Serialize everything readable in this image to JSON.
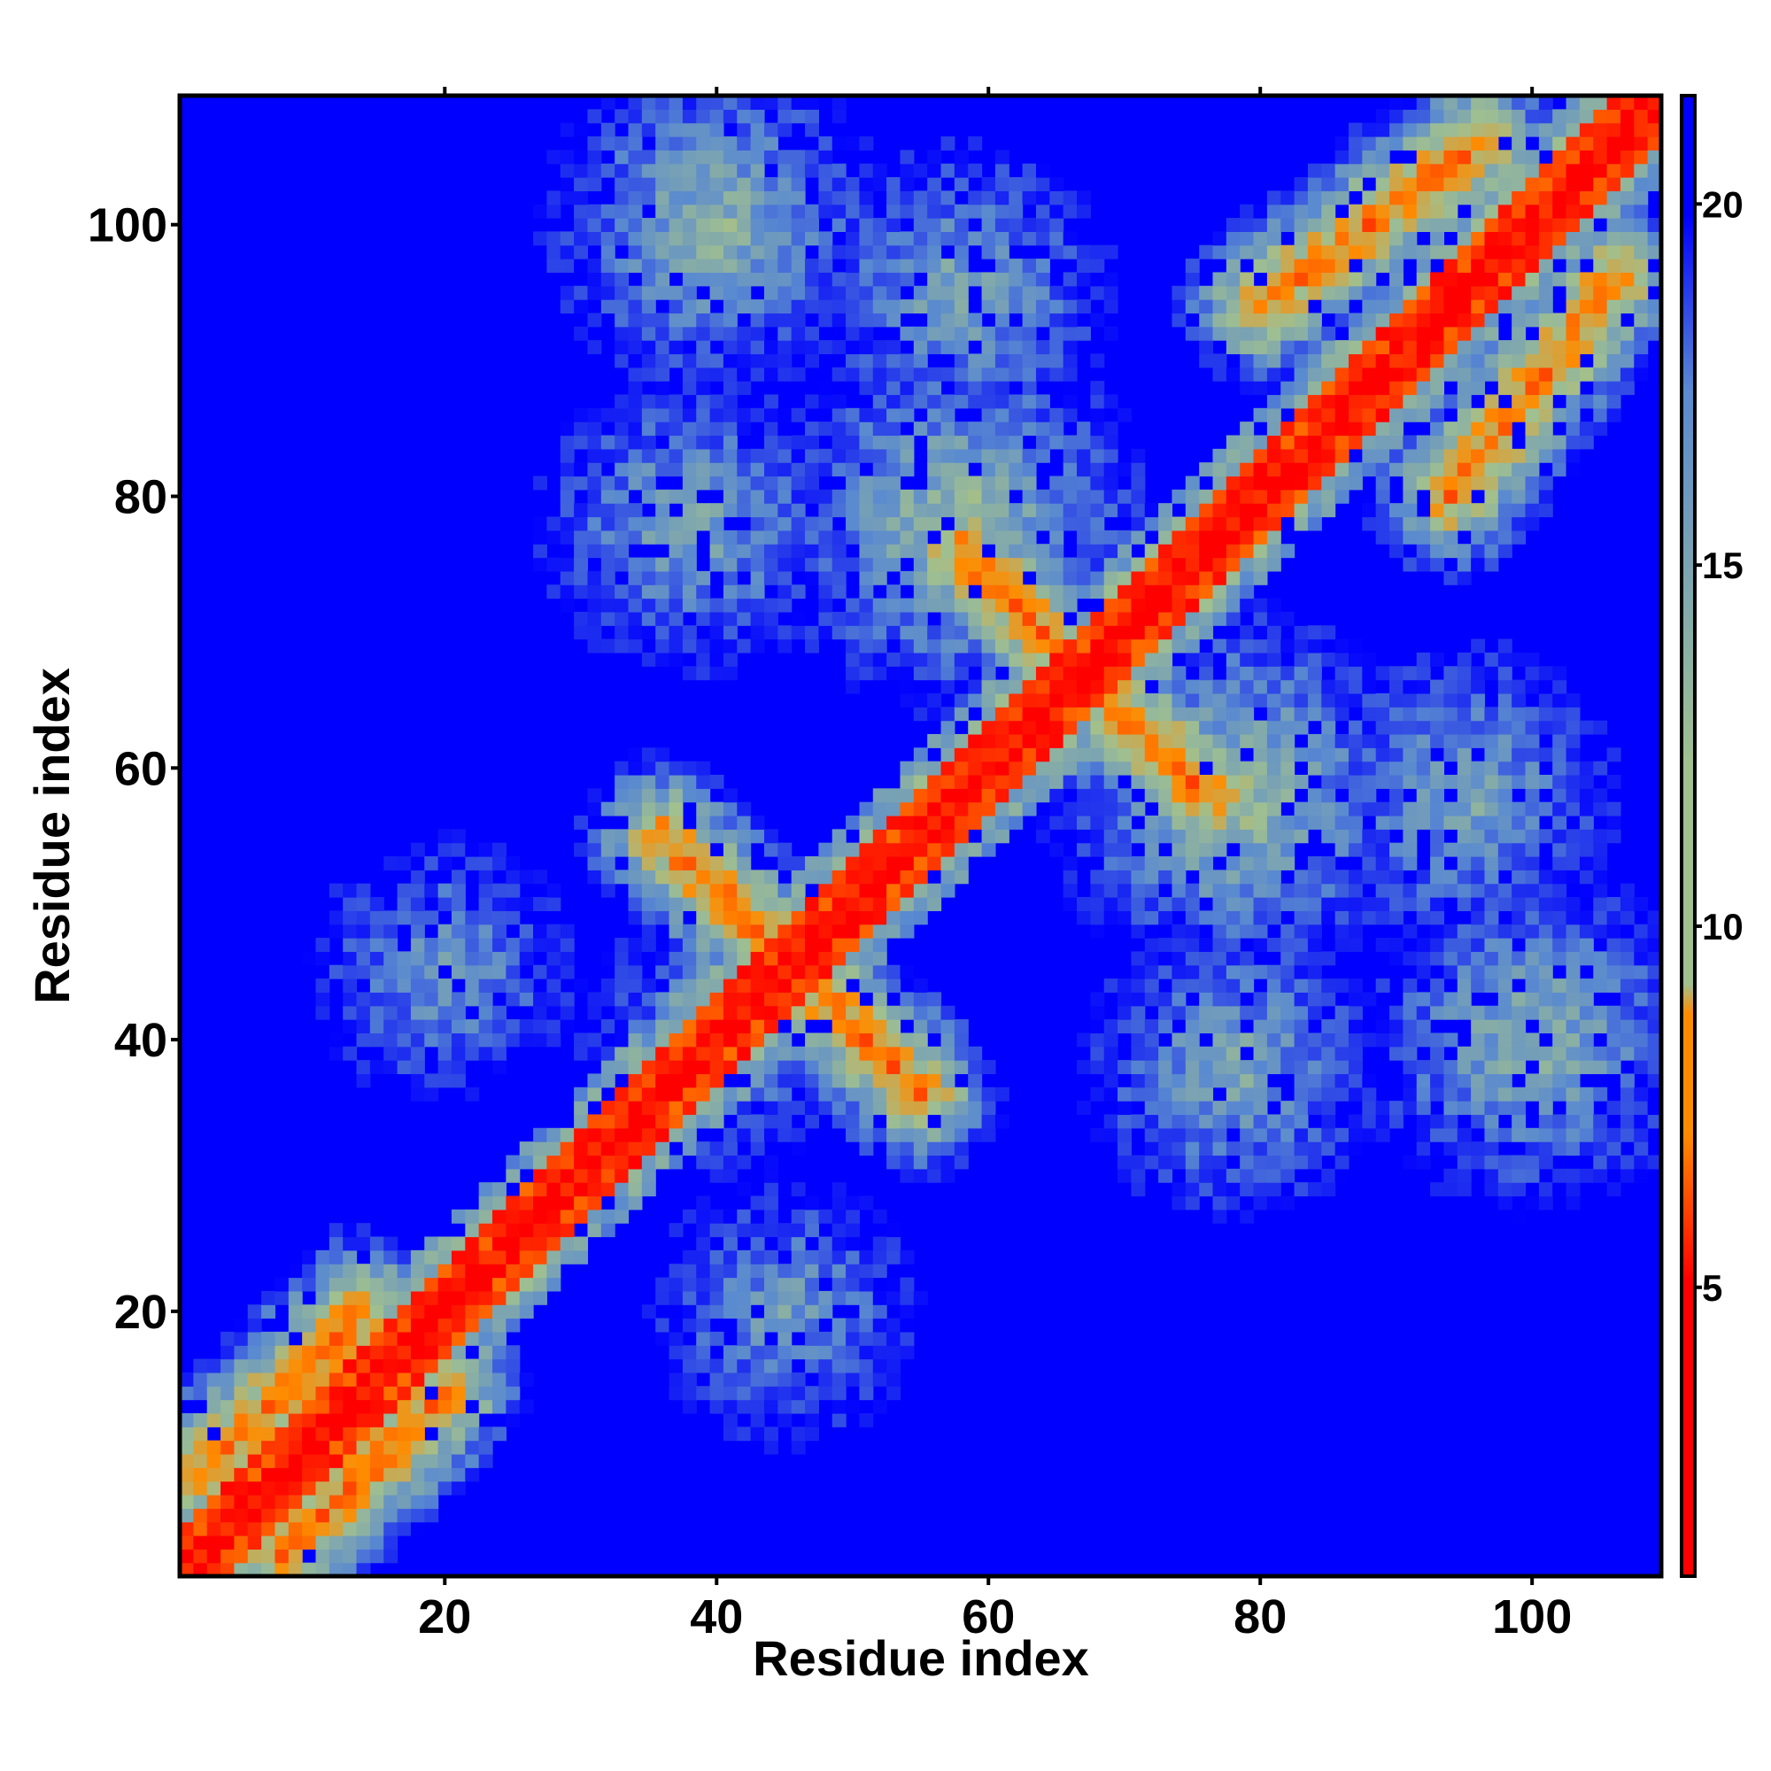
{
  "chart_data": {
    "type": "heatmap",
    "title": "",
    "xlabel": "Residue index",
    "ylabel": "Residue index",
    "xlim": [
      1,
      109
    ],
    "ylim": [
      1,
      109
    ],
    "x_ticks": [
      20,
      40,
      60,
      80,
      100
    ],
    "y_ticks": [
      20,
      40,
      60,
      80,
      100
    ],
    "colorbar": {
      "ticks": [
        5,
        10,
        15,
        20
      ],
      "range": [
        1,
        21.5
      ],
      "colors": [
        "#ff0000",
        "#ff8c00",
        "#a0c090",
        "#5a8ad0",
        "#0000ff"
      ]
    },
    "diagonal": {
      "value": 2
    },
    "features": [
      {
        "kind": "anti-parallel",
        "start": [
          36,
          55
        ],
        "end": [
          55,
          36
        ],
        "value": 6
      },
      {
        "kind": "parallel-band",
        "start": [
          2,
          8
        ],
        "end": [
          14,
          20
        ],
        "value": 6
      },
      {
        "kind": "anti-parallel",
        "start": [
          58,
          76
        ],
        "end": [
          76,
          58
        ],
        "value": 6
      },
      {
        "kind": "parallel-band",
        "start": [
          80,
          94
        ],
        "end": [
          96,
          106
        ],
        "value": 6
      },
      {
        "kind": "cluster",
        "center": [
          40,
          100
        ],
        "value": 11
      },
      {
        "kind": "cluster",
        "center": [
          58,
          95
        ],
        "value": 12
      },
      {
        "kind": "cluster",
        "center": [
          38,
          78
        ],
        "value": 12
      },
      {
        "kind": "cluster",
        "center": [
          58,
          78
        ],
        "value": 10
      },
      {
        "kind": "cluster",
        "center": [
          76,
          58
        ],
        "value": 10
      },
      {
        "kind": "cluster",
        "center": [
          20,
          45
        ],
        "value": 13
      },
      {
        "kind": "cluster",
        "center": [
          40,
          40
        ],
        "value": 13
      },
      {
        "kind": "cluster",
        "center": [
          45,
          10
        ],
        "value": 14
      },
      {
        "kind": "cluster",
        "center": [
          80,
          40
        ],
        "value": 13
      },
      {
        "kind": "cluster",
        "center": [
          90,
          58
        ],
        "value": 14
      },
      {
        "kind": "cluster",
        "center": [
          100,
          95
        ],
        "value": 12
      },
      {
        "kind": "cluster",
        "center": [
          95,
          80
        ],
        "value": 12
      }
    ]
  }
}
